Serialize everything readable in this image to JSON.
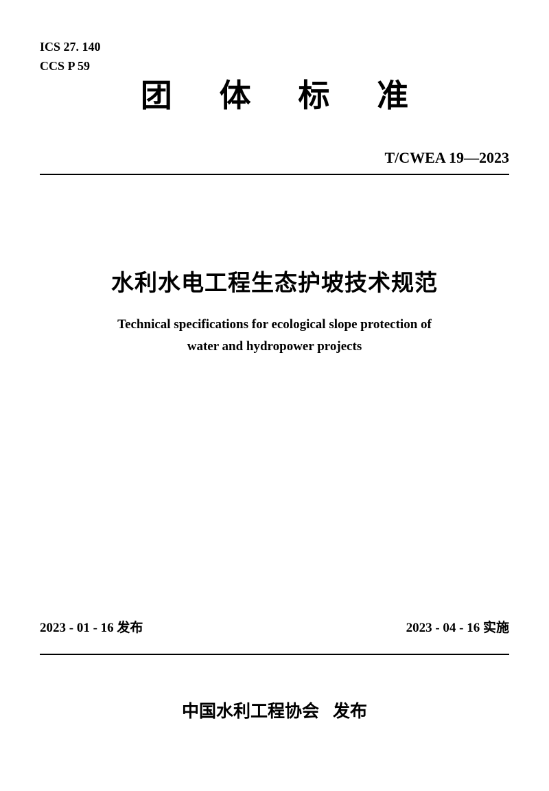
{
  "header": {
    "ics": "ICS 27. 140",
    "ccs": "CCS P 59"
  },
  "doc_type": "团 体 标 准",
  "standard_number": "T/CWEA 19—2023",
  "title": {
    "cn": "水利水电工程生态护坡技术规范",
    "en_line1": "Technical specifications for ecological slope protection of",
    "en_line2": "water and hydropower projects"
  },
  "dates": {
    "issued_num": "2023 - 01 - 16",
    "issued_label": " 发布",
    "effective_num": "2023 - 04 - 16",
    "effective_label": " 实施"
  },
  "publisher": {
    "org": "中国水利工程协会",
    "action": "发布"
  },
  "styles": {
    "text_color": "#000000",
    "background_color": "#ffffff",
    "title_cn_fontsize": 33,
    "title_en_fontsize": 19,
    "doc_type_fontsize": 46,
    "header_fontsize": 18,
    "standard_number_fontsize": 22,
    "dates_fontsize": 19,
    "publisher_fontsize": 25,
    "divider_color": "#000000",
    "divider_width": 2
  }
}
